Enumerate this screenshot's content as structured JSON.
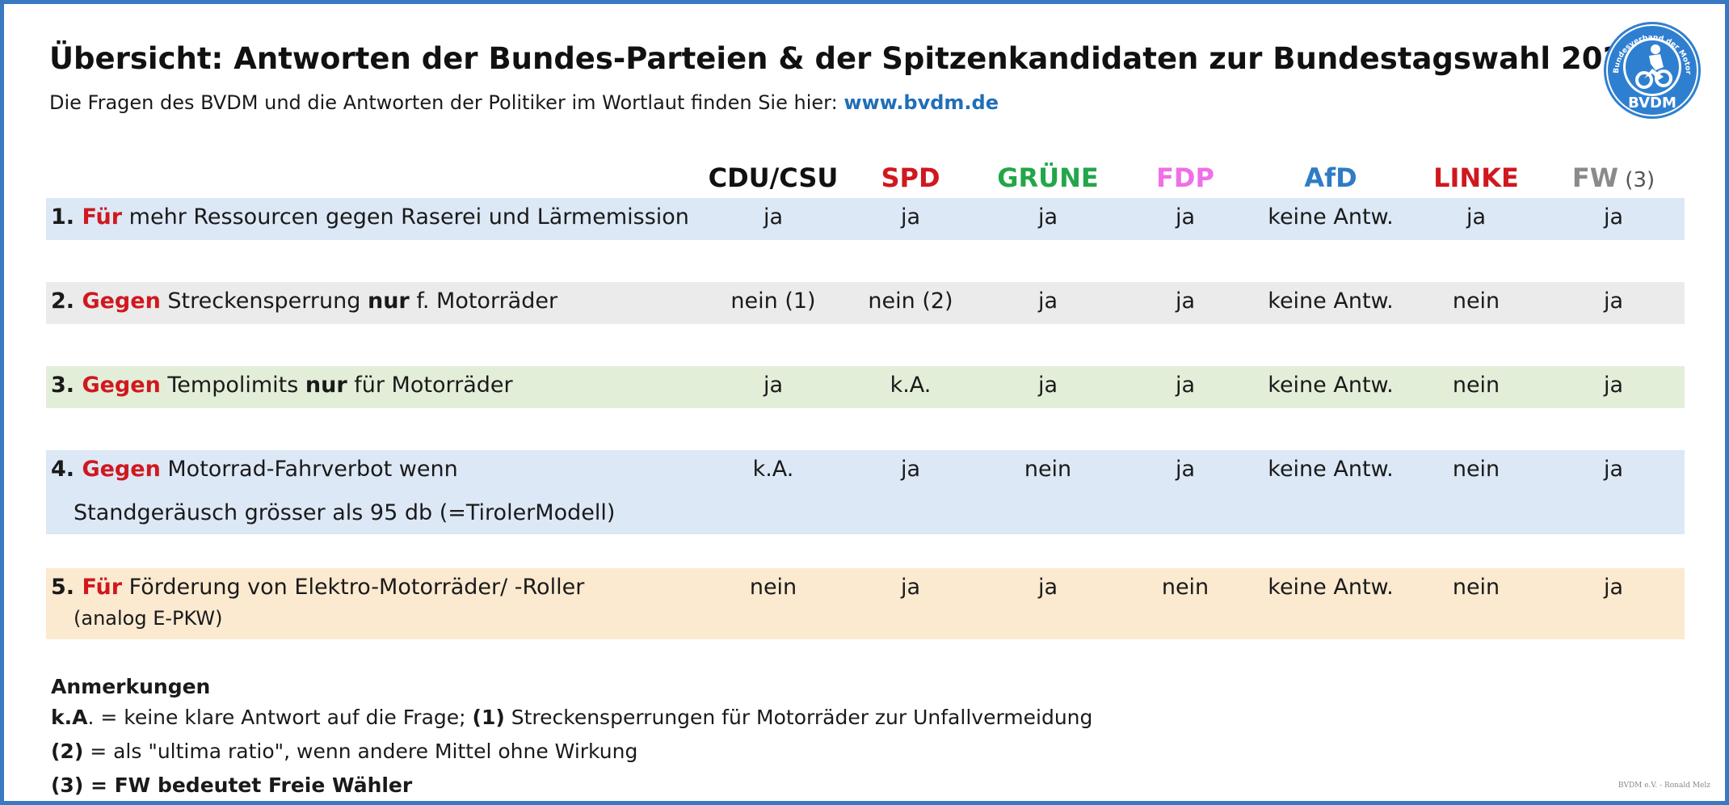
{
  "title": "Übersicht: Antworten der Bundes-Parteien & der Spitzenkandidaten zur Bundestagswahl 2021",
  "subtitle": {
    "text": "Die Fragen des BVDM und die Antworten der Politiker im Wortlaut finden Sie hier:",
    "link": "www.bvdm.de"
  },
  "logo": {
    "ring_text": "Bundesverband der Motorradfahrer e.V.",
    "name": "BVDM"
  },
  "parties": [
    {
      "label": "CDU/CSU",
      "color": "#111111",
      "note": ""
    },
    {
      "label": "SPD",
      "color": "#d0181f",
      "note": ""
    },
    {
      "label": "GRÜNE",
      "color": "#22a64a",
      "note": ""
    },
    {
      "label": "FDP",
      "color": "#f06ee8",
      "note": ""
    },
    {
      "label": "AfD",
      "color": "#2e7cc4",
      "note": ""
    },
    {
      "label": "LINKE",
      "color": "#d0181f",
      "note": ""
    },
    {
      "label": "FW",
      "color": "#8a8a8a",
      "note": "(3)"
    }
  ],
  "questions": [
    {
      "num": "1.",
      "lead": "Für",
      "text": "mehr Ressourcen gegen Raserei und Lärmemission",
      "bold": "",
      "text2": "",
      "sub": "",
      "bg": "#dce8f6",
      "answers": [
        "ja",
        "ja",
        "ja",
        "ja",
        "keine Antw.",
        "ja",
        "ja"
      ]
    },
    {
      "num": "2.",
      "lead": "Gegen",
      "text": "Streckensperrung",
      "bold": "nur",
      "text2": "f. Motorräder",
      "sub": "",
      "bg": "#ebebeb",
      "answers": [
        "nein (1)",
        "nein (2)",
        "ja",
        "ja",
        "keine Antw.",
        "nein",
        "ja"
      ]
    },
    {
      "num": "3.",
      "lead": "Gegen",
      "text": "Tempolimits ",
      "bold": "nur",
      "text2": "für Motorräder",
      "sub": "",
      "bg": "#e3eed9",
      "answers": [
        "ja",
        "k.A.",
        "ja",
        "ja",
        "keine Antw.",
        "nein",
        "ja"
      ]
    },
    {
      "num": "4.",
      "lead": "Gegen",
      "text": "Motorrad-Fahrverbot  wenn",
      "bold": "",
      "text2": "",
      "sub": "Standgeräusch grösser als 95 db (=TirolerModell)",
      "bg": "#dce8f6",
      "answers": [
        "k.A.",
        "ja",
        "nein",
        "ja",
        "keine Antw.",
        "nein",
        "ja"
      ]
    },
    {
      "num": "5.",
      "lead": "Für",
      "text": "Förderung von Elektro-Motorräder/ -Roller",
      "bold": "",
      "text2": "",
      "sub": "(analog E-PKW)",
      "bg": "#fbead0",
      "answers": [
        "nein",
        "ja",
        "ja",
        "nein",
        "keine Antw.",
        "nein",
        "ja"
      ]
    }
  ],
  "notes": {
    "heading": "Anmerkungen",
    "line1_a": "k.A",
    "line1_b": ". = keine  klare Antwort auf die Frage;  ",
    "line1_c": "(1)",
    "line1_d": " Streckensperrungen für Motorräder zur Unfallvermeidung",
    "line2_a": "(2)",
    "line2_b": " =  als \"ultima ratio\", wenn andere Mittel ohne Wirkung",
    "line3": "(3) = FW  bedeutet Freie Wähler"
  },
  "footer": "BVDM e.V. - Ronald Melz"
}
